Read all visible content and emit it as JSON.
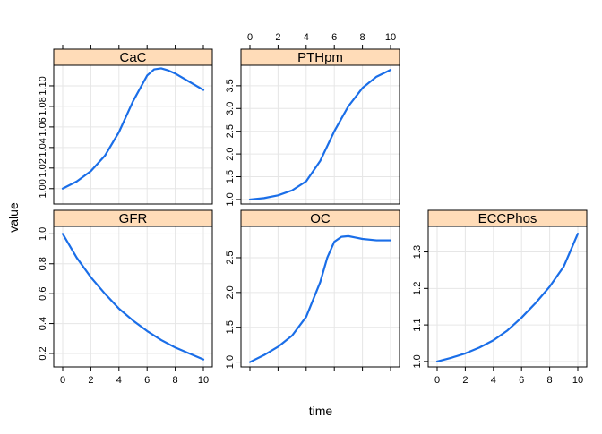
{
  "chart_data": {
    "type": "line",
    "xlabel": "time",
    "ylabel": "value",
    "xlim": [
      0,
      10
    ],
    "x_ticks": [
      "0",
      "2",
      "4",
      "6",
      "8",
      "10"
    ],
    "grid": true,
    "line_color": "#1a6ee8",
    "strip_color": "#ffdcb8",
    "grid_color": "#e6e6e6",
    "panels": [
      {
        "name": "CaC",
        "row": 0,
        "col": 0,
        "ylim": [
          0.985,
          1.12
        ],
        "y_ticks": [
          1.0,
          1.02,
          1.04,
          1.06,
          1.08,
          1.1
        ],
        "y_tick_labels": [
          "1.00",
          "1.02",
          "1.04",
          "1.06",
          "1.08",
          "1.10"
        ],
        "y_tick_labels_side": "left",
        "x_tick_labels_side": "none",
        "x": [
          0,
          1,
          2,
          3,
          4,
          5,
          6,
          6.5,
          7,
          7.5,
          8,
          9,
          10
        ],
        "y": [
          1.0,
          1.007,
          1.017,
          1.032,
          1.055,
          1.085,
          1.11,
          1.116,
          1.117,
          1.115,
          1.112,
          1.104,
          1.096
        ]
      },
      {
        "name": "PTHpm",
        "row": 0,
        "col": 1,
        "ylim": [
          0.9,
          3.95
        ],
        "y_ticks": [
          1.0,
          1.5,
          2.0,
          2.5,
          3.0,
          3.5
        ],
        "y_tick_labels": [
          "1.0",
          "1.5",
          "2.0",
          "2.5",
          "3.0",
          "3.5"
        ],
        "y_tick_labels_side": "left",
        "x_tick_labels_side": "top",
        "x": [
          0,
          1,
          2,
          3,
          4,
          5,
          6,
          7,
          8,
          9,
          10
        ],
        "y": [
          1.0,
          1.03,
          1.09,
          1.2,
          1.4,
          1.85,
          2.5,
          3.05,
          3.45,
          3.7,
          3.85
        ]
      },
      {
        "name": "GFR",
        "row": 1,
        "col": 0,
        "ylim": [
          0.11,
          1.05
        ],
        "y_ticks": [
          0.2,
          0.4,
          0.6,
          0.8,
          1.0
        ],
        "y_tick_labels": [
          "0.2",
          "0.4",
          "0.6",
          "0.8",
          "1.0"
        ],
        "y_tick_labels_side": "left",
        "x_tick_labels_side": "bottom",
        "x": [
          0,
          1,
          2,
          3,
          4,
          5,
          6,
          7,
          8,
          9,
          10
        ],
        "y": [
          1.0,
          0.84,
          0.71,
          0.6,
          0.5,
          0.42,
          0.35,
          0.29,
          0.24,
          0.2,
          0.16
        ]
      },
      {
        "name": "OC",
        "row": 1,
        "col": 1,
        "ylim": [
          0.93,
          2.95
        ],
        "y_ticks": [
          1.0,
          1.5,
          2.0,
          2.5
        ],
        "y_tick_labels": [
          "1.0",
          "1.5",
          "2.0",
          "2.5"
        ],
        "y_tick_labels_side": "left",
        "x_tick_labels_side": "none",
        "x": [
          0,
          1,
          2,
          3,
          4,
          5,
          5.5,
          6,
          6.5,
          7,
          7.5,
          8,
          9,
          10
        ],
        "y": [
          1.0,
          1.1,
          1.22,
          1.38,
          1.65,
          2.15,
          2.5,
          2.73,
          2.8,
          2.81,
          2.79,
          2.77,
          2.75,
          2.75
        ]
      },
      {
        "name": "ECCPhos",
        "row": 1,
        "col": 2,
        "ylim": [
          0.985,
          1.37
        ],
        "y_ticks": [
          1.0,
          1.1,
          1.2,
          1.3
        ],
        "y_tick_labels": [
          "1.0",
          "1.1",
          "1.2",
          "1.3"
        ],
        "y_tick_labels_side": "left",
        "x_tick_labels_side": "bottom",
        "x": [
          0,
          1,
          2,
          3,
          4,
          5,
          6,
          7,
          8,
          9,
          10
        ],
        "y": [
          1.0,
          1.01,
          1.022,
          1.038,
          1.058,
          1.085,
          1.12,
          1.16,
          1.205,
          1.26,
          1.35
        ]
      }
    ]
  }
}
